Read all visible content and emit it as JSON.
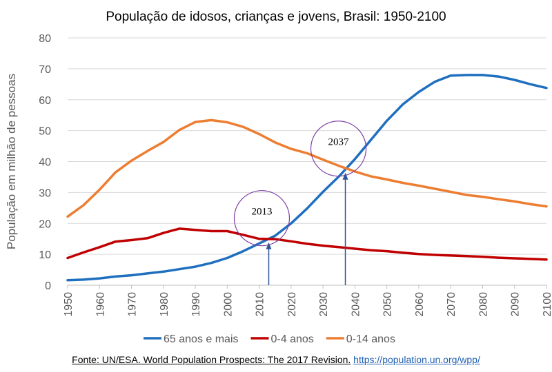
{
  "chart_data": {
    "type": "line",
    "title": "População de idosos, crianças e jovens, Brasil: 1950-2100",
    "xlabel": "",
    "ylabel": "População em milhão de pessoas",
    "xlim": [
      1950,
      2100
    ],
    "ylim": [
      0,
      80
    ],
    "x_ticks": [
      "1950",
      "1960",
      "1970",
      "1980",
      "1990",
      "2000",
      "2010",
      "2020",
      "2030",
      "2040",
      "2050",
      "2060",
      "2070",
      "2080",
      "2090",
      "2100"
    ],
    "y_ticks": [
      "0",
      "10",
      "20",
      "30",
      "40",
      "50",
      "60",
      "70",
      "80"
    ],
    "grid": true,
    "legend_position": "bottom",
    "x": [
      1950,
      1955,
      1960,
      1965,
      1970,
      1975,
      1980,
      1985,
      1990,
      1995,
      2000,
      2005,
      2010,
      2015,
      2020,
      2025,
      2030,
      2035,
      2040,
      2045,
      2050,
      2055,
      2060,
      2065,
      2070,
      2075,
      2080,
      2085,
      2090,
      2095,
      2100
    ],
    "series": [
      {
        "name": "65 anos e mais",
        "color": "#1f6fbf",
        "values": [
          1.6,
          1.8,
          2.2,
          2.8,
          3.2,
          3.8,
          4.4,
          5.2,
          6.0,
          7.2,
          8.8,
          11.0,
          13.5,
          16.0,
          20.0,
          24.8,
          30.2,
          35.2,
          40.8,
          47.0,
          53.2,
          58.5,
          62.5,
          65.8,
          67.8,
          68.0,
          68.0,
          67.5,
          66.4,
          65.0,
          63.8
        ]
      },
      {
        "name": "0-4 anos",
        "color": "#c00000",
        "values": [
          8.8,
          10.6,
          12.3,
          14.1,
          14.6,
          15.2,
          16.9,
          18.3,
          17.9,
          17.5,
          17.5,
          16.3,
          15.0,
          14.9,
          14.2,
          13.4,
          12.8,
          12.3,
          11.8,
          11.3,
          11.0,
          10.5,
          10.1,
          9.8,
          9.6,
          9.4,
          9.2,
          8.9,
          8.7,
          8.5,
          8.3
        ]
      },
      {
        "name": "0-14 anos",
        "color": "#ed7d31",
        "values": [
          22.2,
          25.9,
          30.9,
          36.5,
          40.3,
          43.4,
          46.3,
          50.2,
          52.8,
          53.4,
          52.7,
          51.2,
          48.9,
          46.2,
          44.1,
          42.7,
          40.6,
          38.6,
          36.8,
          35.2,
          34.2,
          33.1,
          32.2,
          31.2,
          30.2,
          29.2,
          28.6,
          27.8,
          27.1,
          26.2,
          25.5
        ]
      }
    ],
    "annotations": [
      {
        "label": "2013",
        "x": 2013,
        "y": 15.0
      },
      {
        "label": "2037",
        "x": 2037,
        "y": 37.5
      }
    ]
  },
  "source": {
    "text": "Fonte: UN/ESA. World Population Prospects: The 2017 Revision.",
    "link": "https://population.un.org/wpp/"
  }
}
